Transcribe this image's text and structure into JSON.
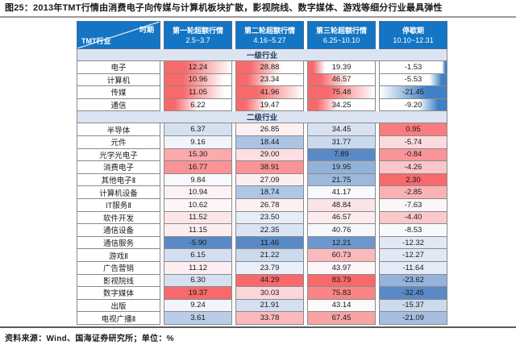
{
  "figure": {
    "title": "图25：2013年TMT行情由消费电子向传媒与计算机板块扩散，影视院线、数字媒体、游戏等细分行业最具弹性"
  },
  "source_note": "资料来源：Wind、国海证券研究所；单位：%",
  "colors": {
    "header_bg": "#1375C4",
    "header_text": "#FFFFFF",
    "section_bg": "#DCE4F2",
    "section_text": "#243B5E",
    "bar_positive": "#F8696B",
    "bar_negative": "#4080C4",
    "scale_low": "#5A8AC6",
    "scale_mid": "#FCFCFF",
    "scale_high": "#F8696B",
    "grid": "#8A8A8A"
  },
  "chart_data": {
    "type": "table",
    "title": "图25：2013年TMT行情由消费电子向传媒与计算机板块扩散，影视院线、数字媒体、游戏等细分行业最具弹性",
    "unit": "%",
    "corner": {
      "top_label": "时期",
      "bottom_label": "TMT行业"
    },
    "columns": [
      {
        "label": "第一轮超额行情",
        "period": "2.5~3.7"
      },
      {
        "label": "第二轮超额行情",
        "period": "4.16~5.27"
      },
      {
        "label": "第三轮超额行情",
        "period": "6.25~10.10"
      },
      {
        "label": "停歇期",
        "period": "10.10~12.31"
      }
    ],
    "sections": [
      {
        "label": "一级行业",
        "format": "databar",
        "rows": [
          {
            "name": "电子",
            "values": [
              12.24,
              28.88,
              19.39,
              -1.53
            ]
          },
          {
            "name": "计算机",
            "values": [
              10.96,
              23.34,
              46.57,
              -5.53
            ]
          },
          {
            "name": "传媒",
            "values": [
              11.05,
              41.96,
              75.48,
              -21.45
            ]
          },
          {
            "name": "通信",
            "values": [
              6.22,
              19.47,
              34.25,
              -9.2
            ]
          }
        ]
      },
      {
        "label": "二级行业",
        "format": "colorscale",
        "rows": [
          {
            "name": "半导体",
            "values": [
              6.37,
              26.85,
              34.45,
              0.95
            ]
          },
          {
            "name": "元件",
            "values": [
              9.16,
              18.44,
              31.77,
              -5.74
            ]
          },
          {
            "name": "光学光电子",
            "values": [
              15.3,
              29.0,
              7.89,
              -0.84
            ]
          },
          {
            "name": "消费电子",
            "values": [
              16.77,
              38.91,
              19.95,
              -4.26
            ]
          },
          {
            "name": "其他电子Ⅱ",
            "values": [
              9.84,
              27.09,
              21.75,
              2.3
            ]
          },
          {
            "name": "计算机设备",
            "values": [
              10.94,
              18.74,
              41.17,
              -2.85
            ]
          },
          {
            "name": "IT服务Ⅱ",
            "values": [
              10.62,
              26.78,
              48.84,
              -7.63
            ]
          },
          {
            "name": "软件开发",
            "values": [
              11.52,
              23.5,
              46.57,
              -4.4
            ]
          },
          {
            "name": "通信设备",
            "values": [
              11.15,
              22.35,
              40.76,
              -8.53
            ]
          },
          {
            "name": "通信服务",
            "values": [
              -5.9,
              11.46,
              12.21,
              -12.32
            ]
          },
          {
            "name": "游戏Ⅱ",
            "values": [
              6.15,
              21.22,
              60.73,
              -12.27
            ]
          },
          {
            "name": "广告营销",
            "values": [
              11.12,
              23.79,
              43.97,
              -11.64
            ]
          },
          {
            "name": "影视院线",
            "values": [
              6.3,
              44.29,
              83.79,
              -23.62
            ]
          },
          {
            "name": "数字媒体",
            "values": [
              19.37,
              30.03,
              75.83,
              -32.45
            ]
          },
          {
            "name": "出版",
            "values": [
              9.24,
              21.91,
              43.14,
              -15.37
            ]
          },
          {
            "name": "电视广播Ⅱ",
            "values": [
              3.61,
              33.78,
              67.45,
              -21.09
            ]
          }
        ]
      }
    ]
  }
}
